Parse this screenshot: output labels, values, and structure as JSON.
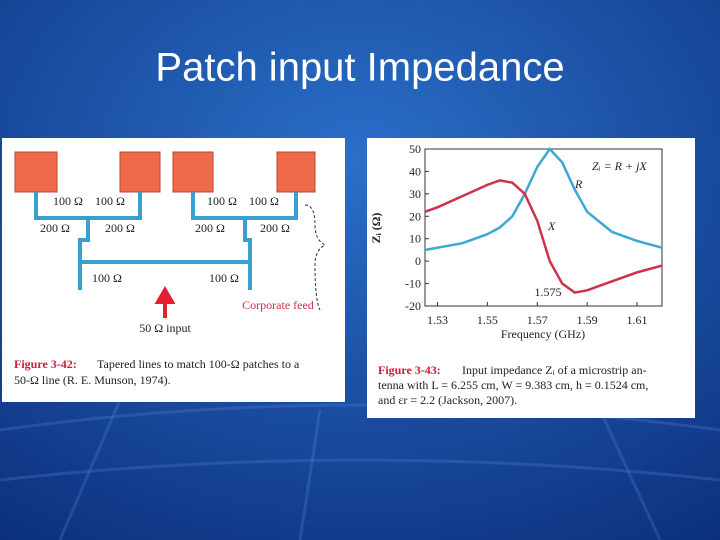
{
  "slide_title": "Patch input Impedance",
  "feed_diagram": {
    "top_labels": [
      "100 Ω",
      "100 Ω",
      "100 Ω",
      "100 Ω"
    ],
    "mid_labels": [
      "200 Ω",
      "200 Ω",
      "200 Ω",
      "200 Ω"
    ],
    "bottom_labels": [
      "100 Ω",
      "100 Ω"
    ],
    "feed_label": "Corporate feed",
    "input_label": "50 Ω input",
    "caption_label": "Figure 3-42:",
    "caption_lines": [
      "Tapered lines to match 100-Ω patches to a",
      "50-Ω line (R. E. Munson, 1974)."
    ]
  },
  "chart_data": {
    "type": "line",
    "x_label": "Frequency (GHz)",
    "y_label": "Zᵢ (Ω)",
    "x": [
      1.525,
      1.53,
      1.54,
      1.55,
      1.555,
      1.56,
      1.565,
      1.57,
      1.575,
      1.58,
      1.585,
      1.59,
      1.6,
      1.61,
      1.62
    ],
    "series": [
      {
        "name": "R",
        "color": "#3ba7d6",
        "values": [
          5,
          6,
          8,
          12,
          15,
          20,
          30,
          42,
          50,
          44,
          32,
          22,
          13,
          9,
          6
        ]
      },
      {
        "name": "X",
        "color": "#d0304a",
        "values": [
          22,
          24,
          29,
          34,
          36,
          35,
          30,
          18,
          0,
          -10,
          -14,
          -13,
          -9,
          -5,
          -2
        ]
      }
    ],
    "xlim": [
      1.525,
      1.62
    ],
    "ylim": [
      -20,
      50
    ],
    "xticks": [
      1.53,
      1.55,
      1.57,
      1.59,
      1.61
    ],
    "yticks": [
      -20,
      -10,
      0,
      10,
      20,
      30,
      40,
      50
    ],
    "annotations": [
      "Zᵢ = R + jX",
      "1.575"
    ],
    "caption_label": "Figure 3-43:",
    "caption_lines": [
      "Input impedance Zᵢ of a microstrip an-",
      "tenna with L = 6.255 cm, W = 9.383 cm, h = 0.1524 cm,",
      "and εr = 2.2 (Jackson, 2007)."
    ]
  }
}
